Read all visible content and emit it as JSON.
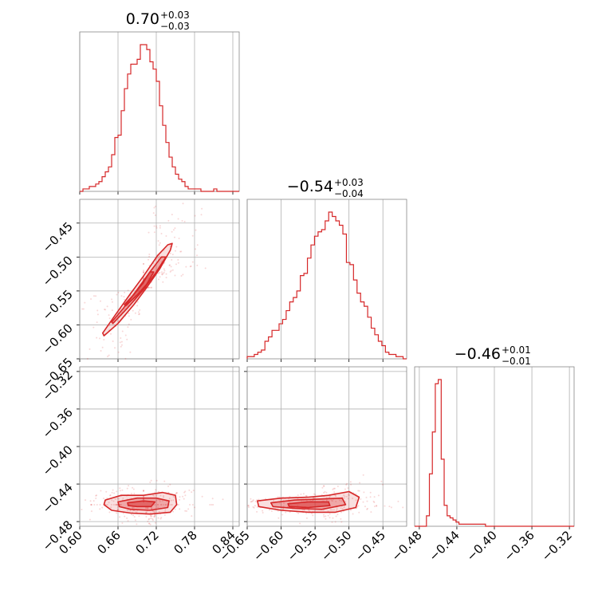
{
  "chart_data": {
    "type": "corner",
    "color": "#d62728",
    "grid": true,
    "parameters": [
      {
        "title_value": "0.70",
        "title_plus": "+0.03",
        "title_minus": "−0.03",
        "range": [
          0.6,
          0.85
        ],
        "ticks": [
          0.6,
          0.66,
          0.72,
          0.78,
          0.84
        ],
        "tick_labels": [
          "0.60",
          "0.66",
          "0.72",
          "0.78",
          "0.84"
        ],
        "hist_bins": [
          0.6,
          0.85
        ],
        "hist_counts": [
          0,
          1,
          1,
          2,
          2,
          3,
          4,
          6,
          8,
          10,
          15,
          22,
          23,
          33,
          42,
          48,
          52,
          52,
          54,
          60,
          60,
          58,
          53,
          50,
          45,
          35,
          27,
          20,
          14,
          10,
          7,
          5,
          4,
          2,
          1,
          1,
          1,
          1,
          0,
          0,
          0,
          0,
          1,
          0,
          0,
          0,
          0,
          0,
          0,
          0
        ]
      },
      {
        "title_value": "−0.54",
        "title_plus": "+0.03",
        "title_minus": "−0.04",
        "range": [
          -0.65,
          -0.415
        ],
        "ticks": [
          -0.65,
          -0.6,
          -0.55,
          -0.5,
          -0.45
        ],
        "tick_labels": [
          "−0.65",
          "−0.60",
          "−0.55",
          "−0.50",
          "−0.45"
        ],
        "hist_counts": [
          1,
          1,
          2,
          3,
          4,
          8,
          10,
          13,
          13,
          16,
          18,
          22,
          26,
          28,
          31,
          38,
          39,
          46,
          52,
          56,
          58,
          59,
          63,
          67,
          65,
          63,
          61,
          57,
          44,
          43,
          36,
          30,
          26,
          24,
          19,
          14,
          11,
          8,
          6,
          3,
          2,
          2,
          1,
          1,
          0
        ]
      },
      {
        "title_value": "−0.46",
        "title_plus": "+0.01",
        "title_minus": "−0.01",
        "range": [
          -0.485,
          -0.315
        ],
        "ticks": [
          -0.48,
          -0.44,
          -0.4,
          -0.36,
          -0.32
        ],
        "tick_labels": [
          "−0.48",
          "−0.44",
          "−0.40",
          "−0.36",
          "−0.32"
        ],
        "hist_counts": [
          0,
          0,
          0,
          0,
          5,
          25,
          45,
          68,
          70,
          32,
          10,
          5,
          4,
          3,
          2,
          1,
          1,
          1,
          1,
          1,
          1,
          1,
          1,
          1,
          0,
          0,
          0,
          0,
          0,
          0,
          0,
          0,
          0,
          0,
          0,
          0,
          0,
          0,
          0,
          0,
          0,
          0,
          0,
          0,
          0,
          0,
          0,
          0,
          0,
          0,
          0,
          0,
          0,
          0
        ]
      }
    ],
    "panels_2d": [
      {
        "x_param": 0,
        "y_param": 1,
        "y_range": [
          -0.65,
          -0.415
        ],
        "samples_center": [
          0.7,
          -0.545
        ],
        "contours": [
          [
            [
              0.638,
              -0.616
            ],
            [
              0.66,
              -0.598
            ],
            [
              0.685,
              -0.57
            ],
            [
              0.705,
              -0.545
            ],
            [
              0.725,
              -0.518
            ],
            [
              0.742,
              -0.49
            ],
            [
              0.745,
              -0.48
            ],
            [
              0.738,
              -0.482
            ],
            [
              0.722,
              -0.498
            ],
            [
              0.7,
              -0.528
            ],
            [
              0.678,
              -0.556
            ],
            [
              0.656,
              -0.585
            ],
            [
              0.636,
              -0.612
            ]
          ],
          [
            [
              0.652,
              -0.598
            ],
            [
              0.675,
              -0.575
            ],
            [
              0.7,
              -0.548
            ],
            [
              0.72,
              -0.522
            ],
            [
              0.735,
              -0.5
            ],
            [
              0.728,
              -0.5
            ],
            [
              0.71,
              -0.522
            ],
            [
              0.69,
              -0.548
            ],
            [
              0.668,
              -0.576
            ],
            [
              0.65,
              -0.596
            ]
          ],
          [
            [
              0.672,
              -0.572
            ],
            [
              0.69,
              -0.556
            ],
            [
              0.705,
              -0.54
            ],
            [
              0.716,
              -0.522
            ],
            [
              0.71,
              -0.522
            ],
            [
              0.698,
              -0.54
            ],
            [
              0.684,
              -0.556
            ],
            [
              0.67,
              -0.57
            ]
          ]
        ]
      },
      {
        "x_param": 0,
        "y_param": 2,
        "samples_center": [
          0.7,
          -0.462
        ],
        "contours": [
          [
            [
              0.64,
              -0.457
            ],
            [
              0.665,
              -0.452
            ],
            [
              0.7,
              -0.452
            ],
            [
              0.73,
              -0.449
            ],
            [
              0.75,
              -0.452
            ],
            [
              0.752,
              -0.462
            ],
            [
              0.742,
              -0.47
            ],
            [
              0.71,
              -0.472
            ],
            [
              0.68,
              -0.471
            ],
            [
              0.65,
              -0.468
            ],
            [
              0.638,
              -0.462
            ]
          ],
          [
            [
              0.66,
              -0.459
            ],
            [
              0.69,
              -0.455
            ],
            [
              0.72,
              -0.455
            ],
            [
              0.74,
              -0.458
            ],
            [
              0.738,
              -0.465
            ],
            [
              0.71,
              -0.468
            ],
            [
              0.68,
              -0.467
            ],
            [
              0.662,
              -0.464
            ]
          ],
          [
            [
              0.675,
              -0.46
            ],
            [
              0.7,
              -0.458
            ],
            [
              0.718,
              -0.459
            ],
            [
              0.712,
              -0.464
            ],
            [
              0.69,
              -0.464
            ],
            [
              0.676,
              -0.463
            ]
          ]
        ]
      },
      {
        "x_param": 1,
        "y_param": 2,
        "samples_center": [
          -0.545,
          -0.462
        ],
        "contours": [
          [
            [
              -0.635,
              -0.458
            ],
            [
              -0.6,
              -0.455
            ],
            [
              -0.56,
              -0.454
            ],
            [
              -0.53,
              -0.452
            ],
            [
              -0.5,
              -0.448
            ],
            [
              -0.485,
              -0.454
            ],
            [
              -0.49,
              -0.465
            ],
            [
              -0.52,
              -0.47
            ],
            [
              -0.56,
              -0.47
            ],
            [
              -0.6,
              -0.468
            ],
            [
              -0.633,
              -0.464
            ]
          ],
          [
            [
              -0.615,
              -0.46
            ],
            [
              -0.58,
              -0.457
            ],
            [
              -0.545,
              -0.456
            ],
            [
              -0.51,
              -0.455
            ],
            [
              -0.505,
              -0.462
            ],
            [
              -0.54,
              -0.467
            ],
            [
              -0.58,
              -0.466
            ],
            [
              -0.612,
              -0.464
            ]
          ],
          [
            [
              -0.59,
              -0.461
            ],
            [
              -0.56,
              -0.459
            ],
            [
              -0.53,
              -0.459
            ],
            [
              -0.528,
              -0.463
            ],
            [
              -0.56,
              -0.465
            ],
            [
              -0.588,
              -0.464
            ]
          ]
        ]
      }
    ]
  }
}
